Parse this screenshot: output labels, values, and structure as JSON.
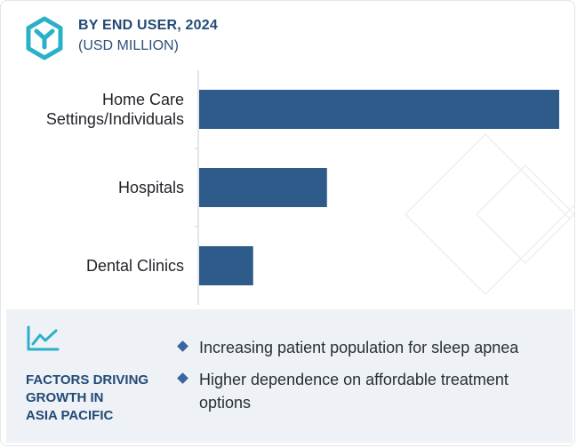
{
  "header": {
    "title": "BY END USER, 2024",
    "subtitle": "(USD MILLION)"
  },
  "chart_data": {
    "type": "bar",
    "orientation": "horizontal",
    "categories": [
      [
        "Home Care",
        "Settings/Individuals"
      ],
      [
        "Hospitals"
      ],
      [
        "Dental Clinics"
      ]
    ],
    "values": [
      100,
      35.5,
      15
    ],
    "xlim": [
      0,
      100
    ],
    "bar_color": "#2e5b8a",
    "grid": false,
    "axis_ticks_visible": false
  },
  "factors": {
    "title_lines": [
      "FACTORS DRIVING",
      "GROWTH IN",
      "ASIA PACIFIC"
    ],
    "items": [
      "Increasing patient population for sleep apnea",
      "Higher dependence on affordable treatment options"
    ]
  },
  "icons": {
    "logo": "y-hexagon-logo-icon",
    "trend": "trend-line-icon",
    "bullet": "diamond-bullet-icon"
  },
  "colors": {
    "accent": "#234a75",
    "bar": "#2e5b8a",
    "logo": "#2bb0c9",
    "panel": "#eef1f6"
  }
}
